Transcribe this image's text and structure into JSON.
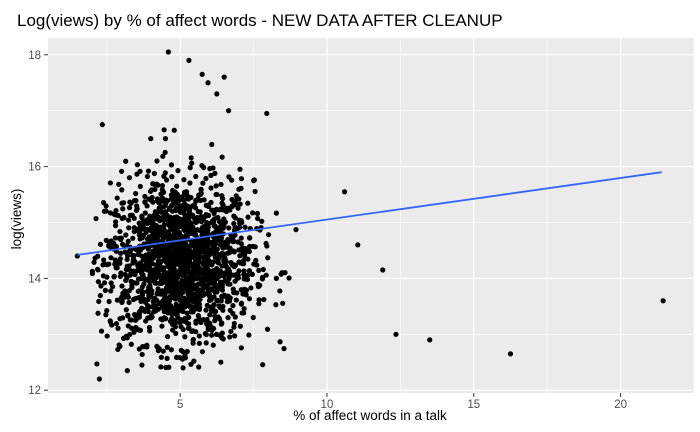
{
  "chart_data": {
    "type": "scatter",
    "title": "Log(views) by % of affect words - NEW DATA AFTER CLEANUP",
    "xlabel": "% of affect words in a talk",
    "ylabel": "log(views)",
    "xlim": [
      0.5,
      22.5
    ],
    "ylim": [
      11.95,
      18.3
    ],
    "x_ticks": [
      5,
      10,
      15,
      20
    ],
    "y_ticks": [
      12,
      14,
      16,
      18
    ],
    "x_tick_labels": [
      "5",
      "10",
      "15",
      "20"
    ],
    "y_tick_labels": [
      "12",
      "14",
      "16",
      "18"
    ],
    "grid": true,
    "background_color": "#ebebeb",
    "point_color": "#000000",
    "trend_color": "#3366ff",
    "trend_line": {
      "x": [
        1.5,
        21.4
      ],
      "y": [
        14.42,
        15.9
      ]
    },
    "points": {
      "x": [
        4.6,
        5.3,
        5.75,
        5.95,
        6.25,
        6.5,
        6.65,
        7.95,
        10.6,
        11.05,
        11.9,
        12.35,
        13.5,
        16.25,
        21.45,
        2.25,
        2.35,
        1.5,
        3.7,
        3.2,
        5.1,
        4.8,
        4.0,
        4.5
      ],
      "y": [
        18.05,
        17.9,
        17.65,
        17.5,
        17.3,
        17.6,
        17.0,
        16.95,
        15.55,
        14.6,
        14.15,
        13.0,
        12.9,
        12.65,
        13.6,
        12.2,
        16.75,
        14.4,
        12.45,
        12.35,
        12.4,
        16.65,
        16.5,
        16.5
      ],
      "cloud": {
        "description_x": "dense cluster between x 2 and 9",
        "center_x": 5.0,
        "center_y": 14.3,
        "x_range": [
          2.0,
          9.5
        ],
        "y_range": [
          12.3,
          16.7
        ],
        "count": 1800
      }
    }
  }
}
